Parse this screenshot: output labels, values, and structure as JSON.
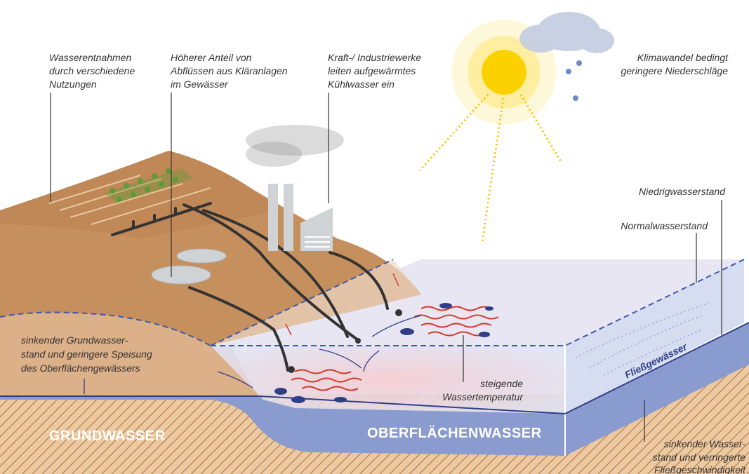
{
  "labels": {
    "withdrawal": [
      "Wasserentnahmen",
      "durch verschiedene",
      "Nutzungen"
    ],
    "treatment": [
      "Höherer Anteil von",
      "Abflüssen aus Kläranlagen",
      "im Gewässer"
    ],
    "industry": [
      "Kraft-/ Industriewerke",
      "leiten aufgewärmtes",
      "Kühlwasser ein"
    ],
    "climate": [
      "Klimawandel bedingt",
      "geringere Niederschläge"
    ],
    "low_water": "Niedrigwasserstand",
    "normal_water": "Normalwasserstand",
    "groundwater_drop": [
      "sinkender Grundwasser-",
      "stand und geringere Speisung",
      "des Oberflächengewässers"
    ],
    "temperature": [
      "steigende",
      "Wassertemperatur"
    ],
    "river": "Fließgewässer",
    "groundwater": "GRUNDWASSER",
    "surface_water": "OBERFLÄCHENWASSER",
    "flow": [
      "sinkender Wasser-",
      "stand und verringerte",
      "Fließgeschwindigkeit"
    ]
  }
}
